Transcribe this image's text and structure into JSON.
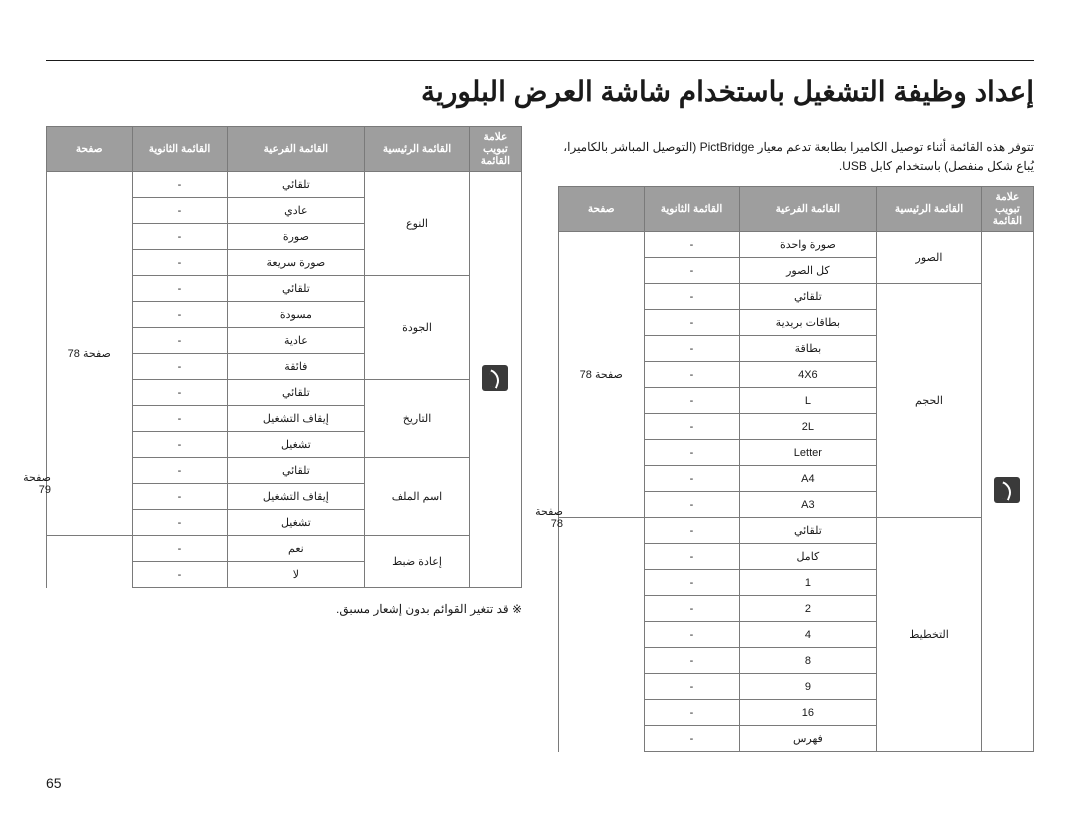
{
  "title": "إعداد وظيفة التشغيل باستخدام شاشة العرض البلورية",
  "intro_line1": "تتوفر هذه القائمة أثناء توصيل الكاميرا بطابعة تدعم معيار PictBridge (التوصيل المباشر بالكاميرا،",
  "intro_line2": "يُباع شكل منفصل) باستخدام كابل USB.",
  "headers": {
    "tab": "علامة تبويب القائمة",
    "main": "القائمة الرئيسية",
    "sub": "القائمة الفرعية",
    "sec": "القائمة الثانوية",
    "page": "صفحة"
  },
  "right_table": {
    "groups": [
      {
        "main": "الصور",
        "page": "صفحة 78",
        "rows": [
          {
            "sub": "صورة واحدة",
            "sec": "-"
          },
          {
            "sub": "كل الصور",
            "sec": "-"
          }
        ]
      },
      {
        "main": "الحجم",
        "page_shared": true,
        "rows": [
          {
            "sub": "تلقائي",
            "sec": "-"
          },
          {
            "sub": "بطاقات بريدية",
            "sec": "-"
          },
          {
            "sub": "بطاقة",
            "sec": "-"
          },
          {
            "sub": "4X6",
            "sec": "-"
          },
          {
            "sub": "L",
            "sec": "-"
          },
          {
            "sub": "2L",
            "sec": "-"
          },
          {
            "sub": "Letter",
            "sec": "-"
          },
          {
            "sub": "A4",
            "sec": "-"
          },
          {
            "sub": "A3",
            "sec": "-"
          }
        ]
      },
      {
        "main": "التخطيط",
        "page": "صفحة 78",
        "rows": [
          {
            "sub": "تلقائي",
            "sec": "-"
          },
          {
            "sub": "كامل",
            "sec": "-"
          },
          {
            "sub": "1",
            "sec": "-"
          },
          {
            "sub": "2",
            "sec": "-"
          },
          {
            "sub": "4",
            "sec": "-"
          },
          {
            "sub": "8",
            "sec": "-"
          },
          {
            "sub": "9",
            "sec": "-"
          },
          {
            "sub": "16",
            "sec": "-"
          },
          {
            "sub": "فهرس",
            "sec": "-"
          }
        ]
      }
    ]
  },
  "left_table": {
    "groups": [
      {
        "main": "النوع",
        "page_shared": true,
        "rows": [
          {
            "sub": "تلقائي",
            "sec": "-"
          },
          {
            "sub": "عادي",
            "sec": "-"
          },
          {
            "sub": "صورة",
            "sec": "-"
          },
          {
            "sub": "صورة سريعة",
            "sec": "-"
          }
        ]
      },
      {
        "main": "الجودة",
        "page": "صفحة 78",
        "rows": [
          {
            "sub": "تلقائي",
            "sec": "-"
          },
          {
            "sub": "مسودة",
            "sec": "-"
          },
          {
            "sub": "عادية",
            "sec": "-"
          },
          {
            "sub": "فائقة",
            "sec": "-"
          }
        ]
      },
      {
        "main": "التاريخ",
        "page_shared": true,
        "rows": [
          {
            "sub": "تلقائي",
            "sec": "-"
          },
          {
            "sub": "إيقاف التشغيل",
            "sec": "-"
          },
          {
            "sub": "تشغيل",
            "sec": "-"
          }
        ]
      },
      {
        "main": "اسم الملف",
        "page_shared": true,
        "rows": [
          {
            "sub": "تلقائي",
            "sec": "-"
          },
          {
            "sub": "إيقاف التشغيل",
            "sec": "-"
          },
          {
            "sub": "تشغيل",
            "sec": "-"
          }
        ]
      },
      {
        "main": "إعادة ضبط",
        "page": "صفحة 79",
        "rows": [
          {
            "sub": "نعم",
            "sec": "-"
          },
          {
            "sub": "لا",
            "sec": "-"
          }
        ]
      }
    ]
  },
  "footnote": "※ قد تتغير القوائم بدون إشعار مسبق.",
  "page_number": "65"
}
